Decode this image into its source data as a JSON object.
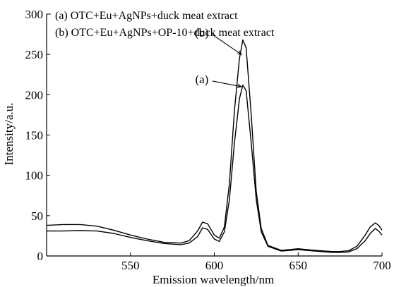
{
  "chart_data": {
    "type": "line",
    "xlabel": "Emission wavelength/nm",
    "ylabel": "Intensity/a.u.",
    "xlim": [
      500,
      700
    ],
    "ylim": [
      0,
      300
    ],
    "xticks": [
      550,
      600,
      650,
      700
    ],
    "yticks": [
      0,
      50,
      100,
      150,
      200,
      250,
      300
    ],
    "grid": false,
    "legend": [
      "(a) OTC+Eu+AgNPs+duck meat extract",
      "(b) OTC+Eu+AgNPs+OP-10+duck meat extract"
    ],
    "legend_position": "top-left",
    "series": [
      {
        "label": "(a)",
        "x": [
          500,
          510,
          520,
          530,
          540,
          550,
          560,
          570,
          580,
          585,
          590,
          593,
          596,
          600,
          603,
          606,
          609,
          612,
          615,
          617,
          619,
          622,
          625,
          628,
          632,
          640,
          645,
          650,
          655,
          660,
          670,
          675,
          680,
          685,
          690,
          693,
          696,
          698,
          700
        ],
        "y": [
          31,
          31,
          31.5,
          31,
          28,
          23,
          19,
          15.5,
          14,
          16,
          24,
          35,
          33,
          21,
          18,
          30,
          70,
          140,
          195,
          212,
          205,
          140,
          70,
          30,
          12,
          6,
          7,
          8,
          7,
          6,
          4.5,
          4.5,
          5,
          9,
          19,
          28,
          34,
          31,
          26
        ]
      },
      {
        "label": "(b)",
        "x": [
          500,
          510,
          520,
          530,
          540,
          550,
          560,
          570,
          580,
          585,
          590,
          593,
          596,
          600,
          603,
          606,
          609,
          612,
          615,
          617,
          619,
          622,
          625,
          628,
          632,
          640,
          645,
          650,
          655,
          660,
          670,
          675,
          680,
          685,
          690,
          693,
          696,
          698,
          700
        ],
        "y": [
          38,
          39,
          39,
          37,
          32,
          26,
          21,
          17,
          16,
          19,
          31,
          42,
          40,
          26,
          22,
          36,
          90,
          180,
          245,
          268,
          258,
          175,
          80,
          34,
          13,
          7,
          8,
          9,
          8,
          7,
          5.5,
          5.5,
          6.5,
          12,
          26,
          36,
          41,
          38,
          32
        ]
      }
    ],
    "annotations": [
      {
        "text": "(b)",
        "target_x": 617,
        "target_y": 250
      },
      {
        "text": "(a)",
        "target_x": 617,
        "target_y": 210
      }
    ]
  }
}
